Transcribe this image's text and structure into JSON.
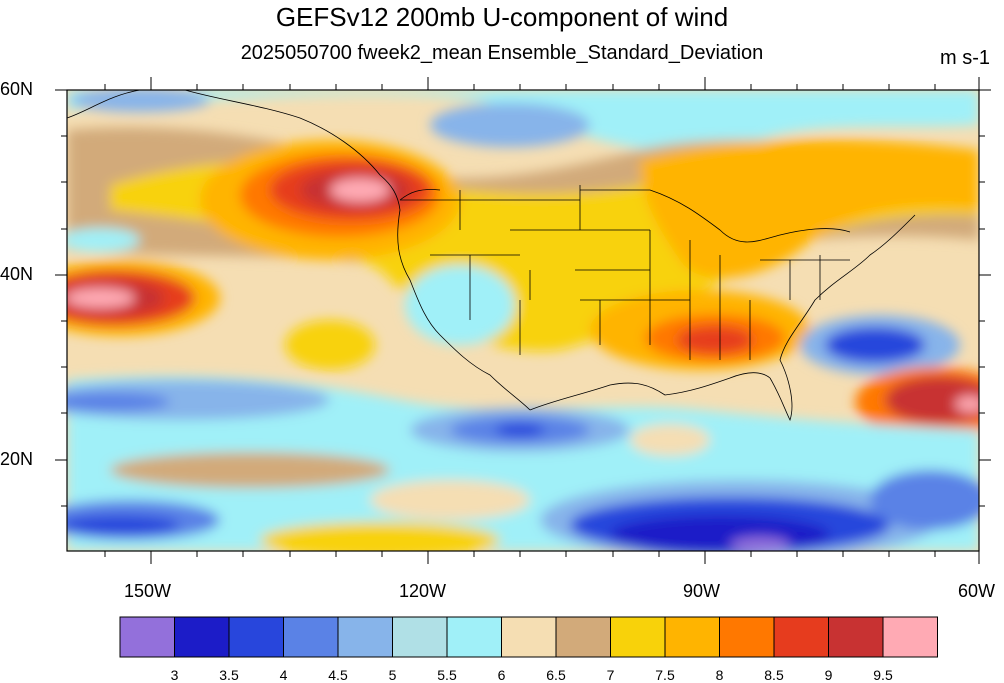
{
  "title": "GEFSv12 200mb U-component of wind",
  "subtitle": "2025050700 fweek2_mean Ensemble_Standard_Deviation",
  "units": "m s-1",
  "lat_labels": [
    "60N",
    "40N",
    "20N"
  ],
  "lon_labels": [
    "150W",
    "120W",
    "90W",
    "60W"
  ],
  "colorbar": {
    "colors": [
      "#9370db",
      "#1c1cc8",
      "#2846dc",
      "#5a82e6",
      "#87b4ea",
      "#b0e0e6",
      "#a0f0f8",
      "#f5deb3",
      "#d2aa7a",
      "#f8d20a",
      "#ffb400",
      "#ff7800",
      "#e63c1e",
      "#c83232",
      "#ffaab4"
    ],
    "labels": [
      "3",
      "3.5",
      "4",
      "4.5",
      "5",
      "5.5",
      "6",
      "6.5",
      "7",
      "7.5",
      "8",
      "8.5",
      "9",
      "9.5"
    ]
  }
}
